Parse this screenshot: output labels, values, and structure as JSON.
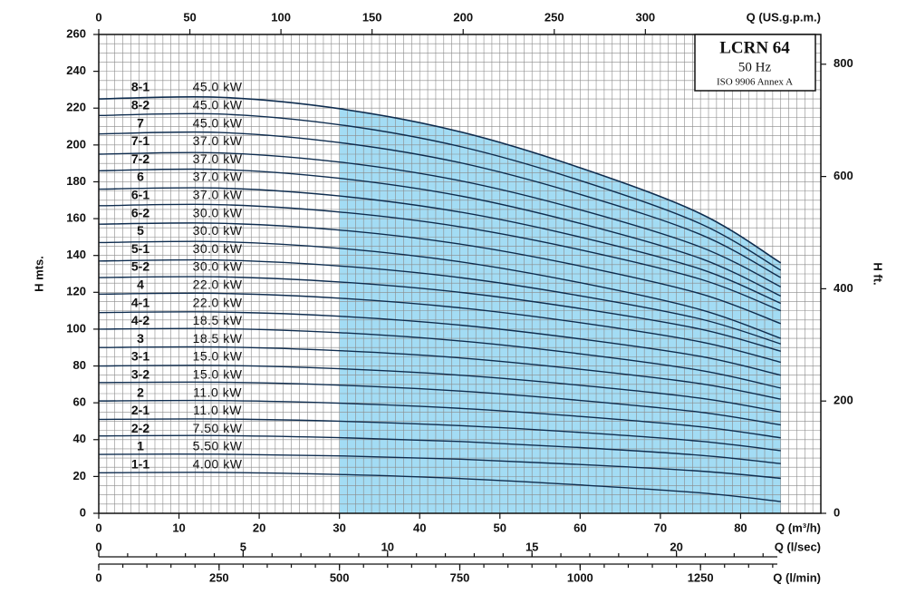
{
  "chart_data": {
    "type": "line",
    "title": "LCRN 64",
    "subtitle": "50 Hz",
    "note": "ISO 9906 Annex A",
    "ylabel": "H mts.",
    "y2label": "H ft.",
    "xlabel": "Q (m³/h)",
    "x2label": "Q (US.g.p.m.)",
    "x3label": "Q (l/sec)",
    "x4label": "Q (l/min)",
    "x": [
      0,
      15,
      30,
      45,
      60,
      75,
      85
    ],
    "xlim": [
      0,
      90
    ],
    "xticks": [
      0,
      10,
      20,
      30,
      40,
      50,
      60,
      70,
      80
    ],
    "ylim": [
      0,
      260
    ],
    "yticks": [
      0,
      20,
      40,
      60,
      80,
      100,
      120,
      140,
      160,
      180,
      200,
      220,
      240,
      260
    ],
    "y2lim": [
      0,
      853
    ],
    "y2ticks": [
      0,
      200,
      400,
      600,
      800
    ],
    "x2lim": [
      0,
      396.3
    ],
    "x2ticks": [
      0,
      50,
      100,
      150,
      200,
      250,
      300
    ],
    "x3lim": [
      0,
      25
    ],
    "x3ticks": [
      0,
      5,
      10,
      15,
      20
    ],
    "x3minor": 1,
    "x4lim": [
      0,
      1500
    ],
    "x4ticks": [
      0,
      250,
      500,
      750,
      1000,
      1250
    ],
    "x4minor": 50,
    "grid": true,
    "xminor": 1,
    "yminor": 5,
    "line_color": "#0f2d4f",
    "shade_color": "#a3dcf4",
    "operating_range": [
      30,
      85
    ],
    "series": [
      {
        "name": "8-1",
        "power": "45.0 kW",
        "values": [
          225,
          225.9,
          219.7,
          207.2,
          187.6,
          162.7,
          136
        ]
      },
      {
        "name": "8-2",
        "power": "45.0 kW",
        "values": [
          216,
          216.8,
          211.0,
          199.2,
          180.7,
          157.2,
          132
        ]
      },
      {
        "name": "7",
        "power": "45.0 kW",
        "values": [
          206,
          206.8,
          201.3,
          190.4,
          173.2,
          151.4,
          128
        ]
      },
      {
        "name": "7-1",
        "power": "37.0 kW",
        "values": [
          195,
          195.7,
          190.7,
          180.6,
          164.8,
          144.6,
          123
        ]
      },
      {
        "name": "7-2",
        "power": "37.0 kW",
        "values": [
          186,
          186.7,
          181.9,
          172.4,
          157.4,
          138.4,
          118
        ]
      },
      {
        "name": "6",
        "power": "37.0 kW",
        "values": [
          176,
          176.6,
          172.3,
          163.6,
          150.0,
          132.6,
          114
        ]
      },
      {
        "name": "6-1",
        "power": "37.0 kW",
        "values": [
          167,
          167.6,
          163.6,
          155.6,
          143.1,
          127.1,
          110
        ]
      },
      {
        "name": "6-2",
        "power": "30.0 kW",
        "values": [
          157,
          157.5,
          153.8,
          146.2,
          134.3,
          119.2,
          103
        ]
      },
      {
        "name": "5",
        "power": "30.0 kW",
        "values": [
          147,
          147.5,
          143.9,
          136.6,
          125.2,
          110.6,
          95
        ]
      },
      {
        "name": "5-1",
        "power": "30.0 kW",
        "values": [
          137,
          137.5,
          134.3,
          128.0,
          118.1,
          105.5,
          92
        ]
      },
      {
        "name": "5-2",
        "power": "30.0 kW",
        "values": [
          128,
          128.4,
          125.6,
          120.0,
          111.2,
          100.0,
          88
        ]
      },
      {
        "name": "4",
        "power": "22.0 kW",
        "values": [
          119,
          119.4,
          116.8,
          111.6,
          103.5,
          93.1,
          82
        ]
      },
      {
        "name": "4-1",
        "power": "22.0 kW",
        "values": [
          109,
          109.3,
          107.0,
          102.2,
          94.7,
          85.2,
          75
        ]
      },
      {
        "name": "4-2",
        "power": "18.5 kW",
        "values": [
          100,
          100.3,
          98.1,
          93.6,
          86.6,
          77.6,
          68
        ]
      },
      {
        "name": "3",
        "power": "18.5 kW",
        "values": [
          90,
          90.3,
          88.3,
          84.4,
          78.2,
          70.4,
          62
        ]
      },
      {
        "name": "3-1",
        "power": "15.0 kW",
        "values": [
          80,
          80.3,
          78.5,
          75.0,
          69.5,
          62.5,
          55
        ]
      },
      {
        "name": "3-2",
        "power": "15.0 kW",
        "values": [
          71,
          71.2,
          69.6,
          66.4,
          61.3,
          54.9,
          48
        ]
      },
      {
        "name": "2",
        "power": "11.0 kW",
        "values": [
          61,
          61.2,
          59.8,
          57.0,
          52.6,
          47.0,
          41
        ]
      },
      {
        "name": "2-1",
        "power": "11.0 kW",
        "values": [
          51,
          51.2,
          50.0,
          47.6,
          43.9,
          39.1,
          34
        ]
      },
      {
        "name": "2-2",
        "power": "7.50 kW",
        "values": [
          42,
          42.2,
          41.1,
          39.0,
          35.7,
          31.5,
          27
        ]
      },
      {
        "name": "1",
        "power": "5.50 kW",
        "values": [
          32,
          32.1,
          31.2,
          29.4,
          26.5,
          22.9,
          19
        ]
      },
      {
        "name": "1-1",
        "power": "4.00 kW",
        "values": [
          22,
          22.2,
          21.1,
          18.9,
          15.4,
          11.1,
          6.4
        ]
      }
    ]
  }
}
